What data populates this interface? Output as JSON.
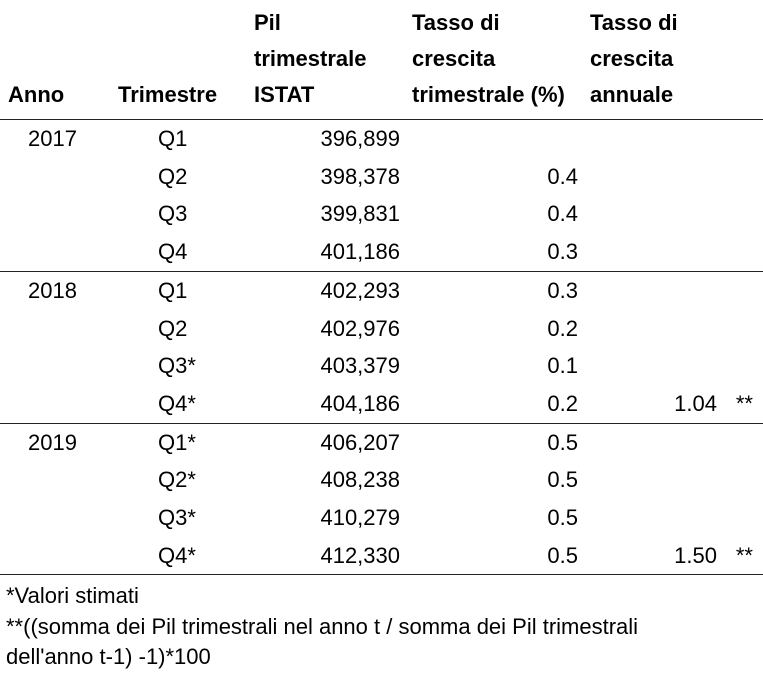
{
  "headers": {
    "anno": "Anno",
    "trimestre": "Trimestre",
    "pil": [
      "Pil",
      "trimestrale",
      "ISTAT"
    ],
    "tasso_trimestrale": [
      "Tasso di",
      "crescita",
      "trimestrale (%)"
    ],
    "tasso_annuale": [
      "Tasso di",
      "crescita",
      "annuale"
    ]
  },
  "rows": [
    {
      "anno": "2017",
      "trimestre": "Q1",
      "pil": "396,899",
      "tasso_trimestrale": "",
      "tasso_annuale": "",
      "marker": ""
    },
    {
      "anno": "",
      "trimestre": "Q2",
      "pil": "398,378",
      "tasso_trimestrale": "0.4",
      "tasso_annuale": "",
      "marker": ""
    },
    {
      "anno": "",
      "trimestre": "Q3",
      "pil": "399,831",
      "tasso_trimestrale": "0.4",
      "tasso_annuale": "",
      "marker": ""
    },
    {
      "anno": "",
      "trimestre": "Q4",
      "pil": "401,186",
      "tasso_trimestrale": "0.3",
      "tasso_annuale": "",
      "marker": ""
    },
    {
      "anno": "2018",
      "trimestre": "Q1",
      "pil": "402,293",
      "tasso_trimestrale": "0.3",
      "tasso_annuale": "",
      "marker": ""
    },
    {
      "anno": "",
      "trimestre": "Q2",
      "pil": "402,976",
      "tasso_trimestrale": "0.2",
      "tasso_annuale": "",
      "marker": ""
    },
    {
      "anno": "",
      "trimestre": "Q3*",
      "pil": "403,379",
      "tasso_trimestrale": "0.1",
      "tasso_annuale": "",
      "marker": ""
    },
    {
      "anno": "",
      "trimestre": "Q4*",
      "pil": "404,186",
      "tasso_trimestrale": "0.2",
      "tasso_annuale": "1.04",
      "marker": "**"
    },
    {
      "anno": "2019",
      "trimestre": "Q1*",
      "pil": "406,207",
      "tasso_trimestrale": "0.5",
      "tasso_annuale": "",
      "marker": ""
    },
    {
      "anno": "",
      "trimestre": "Q2*",
      "pil": "408,238",
      "tasso_trimestrale": "0.5",
      "tasso_annuale": "",
      "marker": ""
    },
    {
      "anno": "",
      "trimestre": "Q3*",
      "pil": "410,279",
      "tasso_trimestrale": "0.5",
      "tasso_annuale": "",
      "marker": ""
    },
    {
      "anno": "",
      "trimestre": "Q4*",
      "pil": "412,330",
      "tasso_trimestrale": "0.5",
      "tasso_annuale": "1.50",
      "marker": "**"
    }
  ],
  "notes": {
    "line1": "*Valori stimati",
    "line2": "**((somma dei Pil trimestrali nel anno t / somma dei Pil trimestrali",
    "line3": "dell'anno t-1) -1)*100"
  }
}
